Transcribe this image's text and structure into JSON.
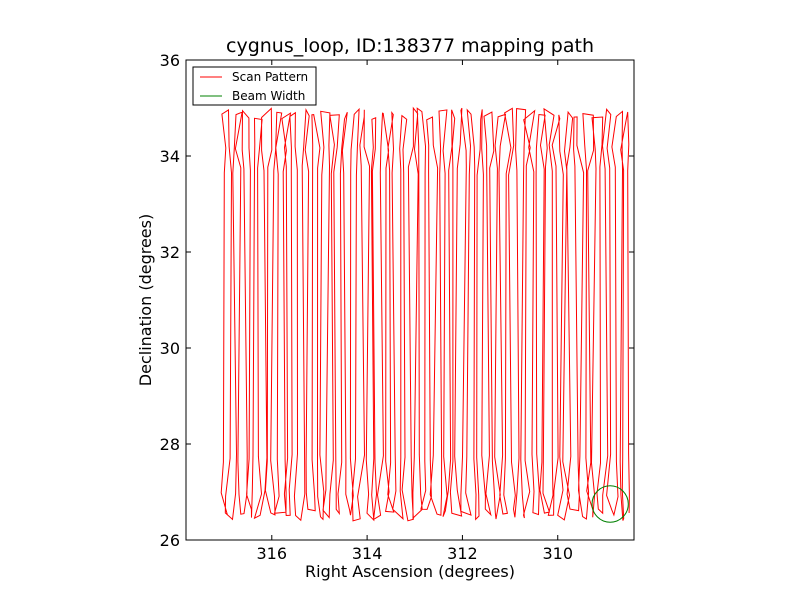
{
  "chart_data": {
    "type": "line",
    "title": "cygnus_loop, ID:138377 mapping path",
    "xlabel": "Right Ascension (degrees)",
    "ylabel": "Declination (degrees)",
    "xlim": [
      317.8,
      308.4
    ],
    "ylim": [
      26,
      36
    ],
    "x_ticks": [
      {
        "value": 316,
        "label": "316"
      },
      {
        "value": 314,
        "label": "314"
      },
      {
        "value": 312,
        "label": "312"
      },
      {
        "value": 310,
        "label": "310"
      }
    ],
    "y_ticks": [
      {
        "value": 26,
        "label": "26"
      },
      {
        "value": 28,
        "label": "28"
      },
      {
        "value": 30,
        "label": "30"
      },
      {
        "value": 32,
        "label": "32"
      },
      {
        "value": 34,
        "label": "34"
      },
      {
        "value": 36,
        "label": "36"
      }
    ],
    "legend": {
      "placement": "top-left",
      "entries": [
        {
          "label": "Scan Pattern",
          "color": "#ff0000"
        },
        {
          "label": "Beam Width",
          "color": "#008000"
        }
      ]
    },
    "series": [
      {
        "name": "Scan Pattern",
        "color": "#ff0000",
        "scan": {
          "ra_start": 317.0,
          "ra_end": 308.5,
          "legs": 84,
          "dec_low": 26.4,
          "dec_high": 35.0
        }
      },
      {
        "name": "Beam Width",
        "color": "#008000",
        "circle": {
          "ra": 308.9,
          "dec": 26.75,
          "radius_deg": 0.38
        }
      }
    ]
  }
}
